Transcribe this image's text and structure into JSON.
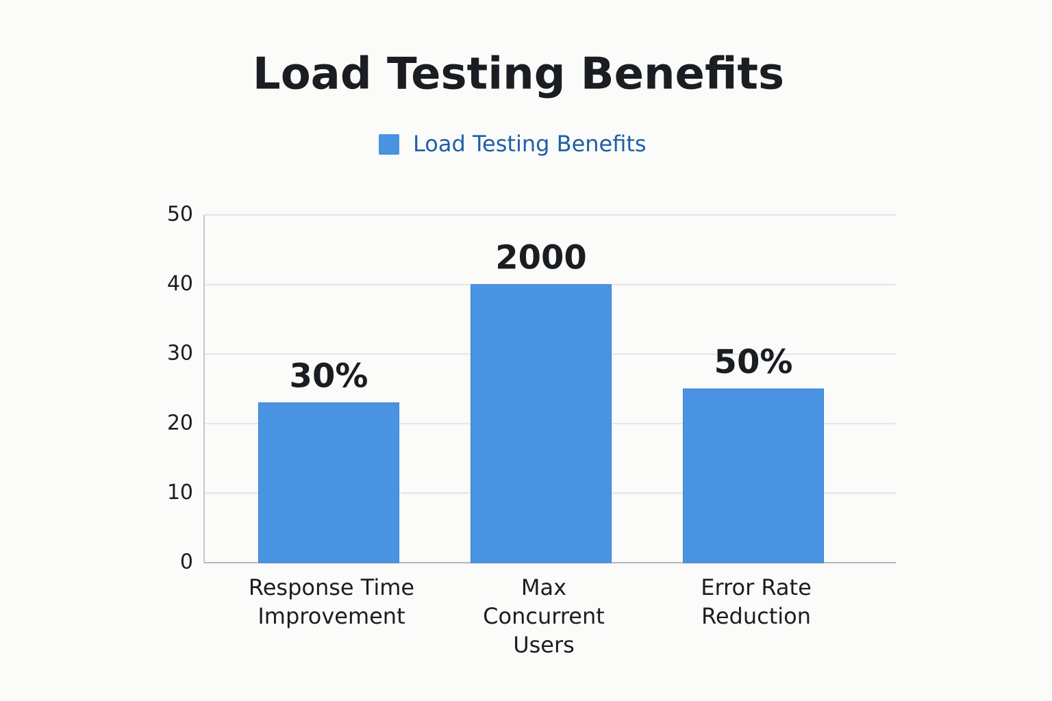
{
  "chart_data": {
    "type": "bar",
    "title": "Load Testing Benefits",
    "legend": "Load Testing Benefits",
    "categories": [
      [
        "Response Time",
        "Improvement"
      ],
      [
        "Max",
        "Concurrent",
        "Users"
      ],
      [
        "Error Rate",
        "Reduction"
      ]
    ],
    "values": [
      23,
      40,
      25
    ],
    "annotations": [
      "30%",
      "2000",
      "50%"
    ],
    "color": "#4a93e3",
    "ylim": [
      0,
      50
    ],
    "yticks": [
      0,
      10,
      20,
      30,
      40,
      50
    ],
    "grid": true
  }
}
